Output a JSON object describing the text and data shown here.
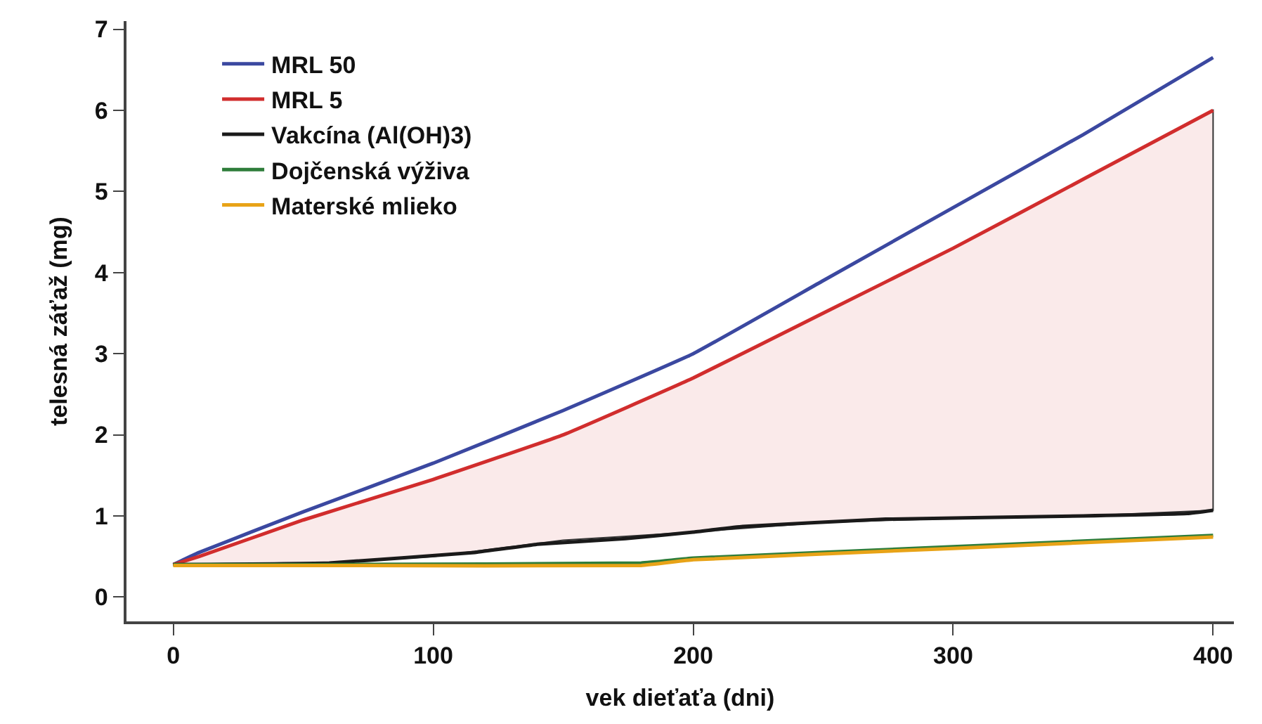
{
  "chart_data": {
    "type": "line",
    "xlabel": "vek dieťaťa (dni)",
    "ylabel": "telesná záťaž (mg)",
    "xlim": [
      -18,
      408
    ],
    "ylim": [
      -0.3,
      7.1
    ],
    "xticks": [
      0,
      100,
      200,
      300,
      400
    ],
    "yticks": [
      0,
      1,
      2,
      3,
      4,
      5,
      6,
      7
    ],
    "legend": "top left",
    "line_style": "solid",
    "marker": "none",
    "series": [
      {
        "name": "MRL 50",
        "color": "#3b48a0",
        "x": [
          0,
          10,
          50,
          100,
          150,
          200,
          250,
          300,
          350,
          400
        ],
        "values": [
          0.4,
          0.55,
          1.05,
          1.65,
          2.3,
          3.0,
          3.9,
          4.8,
          5.7,
          6.65
        ]
      },
      {
        "name": "MRL 5",
        "color": "#d12d2d",
        "x": [
          0,
          10,
          50,
          100,
          150,
          200,
          250,
          300,
          350,
          400
        ],
        "values": [
          0.4,
          0.5,
          0.95,
          1.45,
          2.0,
          2.7,
          3.5,
          4.3,
          5.15,
          6.0
        ],
        "lower": [
          0.4,
          0.4,
          0.4,
          0.5,
          0.7,
          0.8,
          0.92,
          0.97,
          1.0,
          1.07
        ],
        "upper": [
          0.4,
          0.5,
          0.95,
          1.45,
          2.0,
          2.7,
          3.5,
          4.3,
          5.15,
          6.0
        ]
      },
      {
        "name": "Vakcína (Al(OH)3)",
        "color": "#1a1a1a",
        "x": [
          0,
          60,
          116,
          140,
          174,
          200,
          219,
          274,
          350,
          390,
          400
        ],
        "values": [
          0.4,
          0.42,
          0.55,
          0.65,
          0.72,
          0.8,
          0.87,
          0.96,
          1.0,
          1.03,
          1.07
        ]
      },
      {
        "name": "Dojčenská výživa",
        "color": "#2e7d3a",
        "x": [
          0,
          60,
          180,
          200,
          300,
          400
        ],
        "values": [
          0.4,
          0.4,
          0.42,
          0.48,
          0.62,
          0.76
        ]
      },
      {
        "name": "Materské mlieko",
        "color": "#e8a317",
        "x": [
          0,
          60,
          180,
          200,
          300,
          400
        ],
        "values": [
          0.39,
          0.39,
          0.39,
          0.46,
          0.6,
          0.74
        ]
      }
    ]
  }
}
